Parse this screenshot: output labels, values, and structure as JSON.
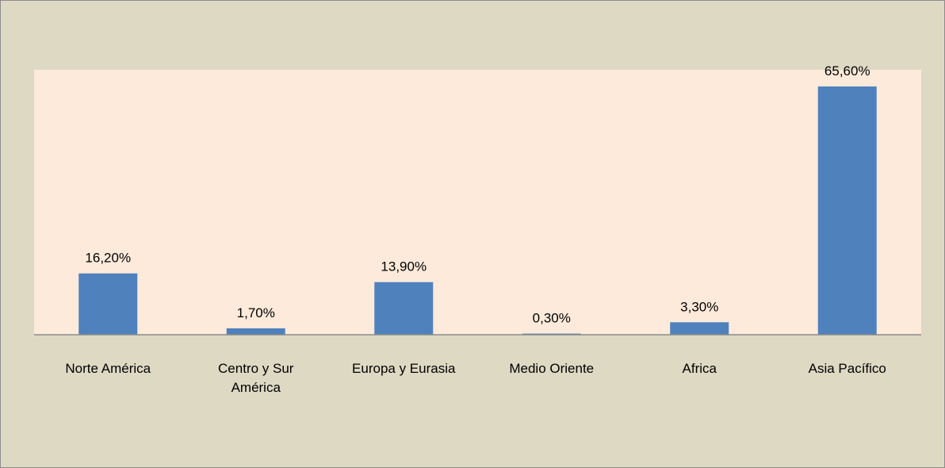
{
  "chart_data": {
    "type": "bar",
    "categories": [
      "Norte América",
      "Centro y Sur América",
      "Europa y Eurasia",
      "Medio Oriente",
      "Africa",
      "Asia Pacífico"
    ],
    "values": [
      16.2,
      1.7,
      13.9,
      0.3,
      3.3,
      65.6
    ],
    "value_labels": [
      "16,20%",
      "1,70%",
      "13,90%",
      "0,30%",
      "3,30%",
      "65,60%"
    ],
    "color": "#4f81bd",
    "ylim": [
      0,
      70
    ]
  }
}
